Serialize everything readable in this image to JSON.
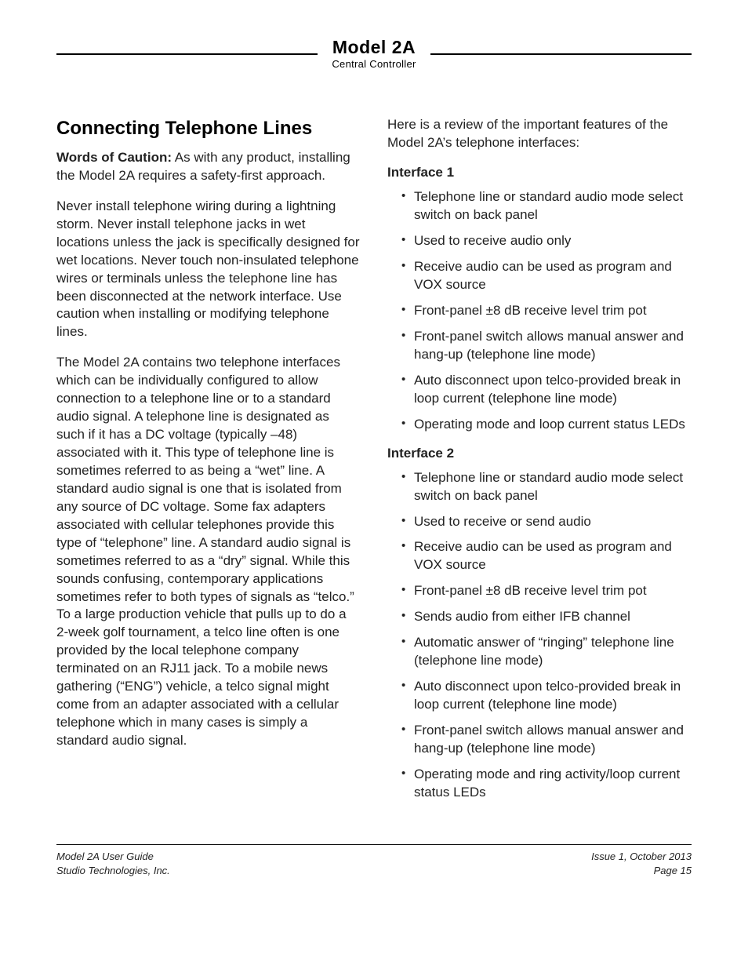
{
  "masthead": {
    "model": "Model 2A",
    "sub": "Central Controller"
  },
  "left": {
    "title": "Connecting Telephone Lines",
    "caution_label": "Words of Caution:",
    "caution_body": " As with any product, installing the Model 2A requires a safety-first approach.",
    "p2": "Never install telephone wiring during a lightning storm. Never install telephone jacks in wet locations unless the jack is specifically designed for wet locations. Never touch non-insulated telephone wires or terminals unless the telephone line has been disconnected at the network interface. Use caution when installing or modifying telephone lines.",
    "p3": "The Model 2A contains two telephone interfaces which can be individually configured to allow connection to a telephone line or to a standard audio signal. A telephone line is designated as such if it has a DC voltage (typically –48) associated with it. This type of telephone line is sometimes referred to as being a “wet” line. A standard audio signal is one that is isolated from any source of DC voltage. Some fax adapters associated with cellular telephones provide this type of “telephone” line. A standard audio signal is sometimes referred to as a “dry” signal. While this sounds confusing, contemporary applications sometimes refer to both types of signals as “telco.” To a large production vehicle that pulls up to do a 2-week golf tournament, a telco line often is one provided by the local telephone company terminated on an RJ11 jack. To a mobile news gathering (“ENG”) vehicle, a telco signal might come from an adapter associated with a cellular telephone which in many cases is simply a standard audio signal."
  },
  "right": {
    "intro": "Here is a review of the important features of the Model 2A’s telephone interfaces:",
    "if1_title": "Interface 1",
    "if1": [
      "Telephone line or standard audio mode select switch on back panel",
      "Used to receive audio only",
      "Receive audio can be used as program and VOX source",
      "Front-panel ±8 dB receive level trim pot",
      "Front-panel switch allows manual answer and hang-up (telephone line mode)",
      "Auto disconnect upon telco-provided break in loop current (telephone line mode)",
      "Operating mode and loop current status LEDs"
    ],
    "if2_title": "Interface 2",
    "if2": [
      "Telephone line or standard audio mode select switch on back panel",
      "Used to receive or send audio",
      "Receive audio can be used as program and VOX source",
      "Front-panel ±8 dB receive level trim pot",
      "Sends audio from either IFB channel",
      "Automatic answer of “ringing” telephone line (telephone line mode)",
      "Auto disconnect upon telco-provided break in loop current (telephone line mode)",
      "Front-panel switch allows manual answer and hang-up (telephone line mode)",
      "Operating mode and ring activity/loop current status LEDs"
    ]
  },
  "footer": {
    "left1": "Model 2A User Guide",
    "left2": "Studio Technologies, Inc.",
    "right1": "Issue 1, October 2013",
    "right2": "Page 15"
  }
}
